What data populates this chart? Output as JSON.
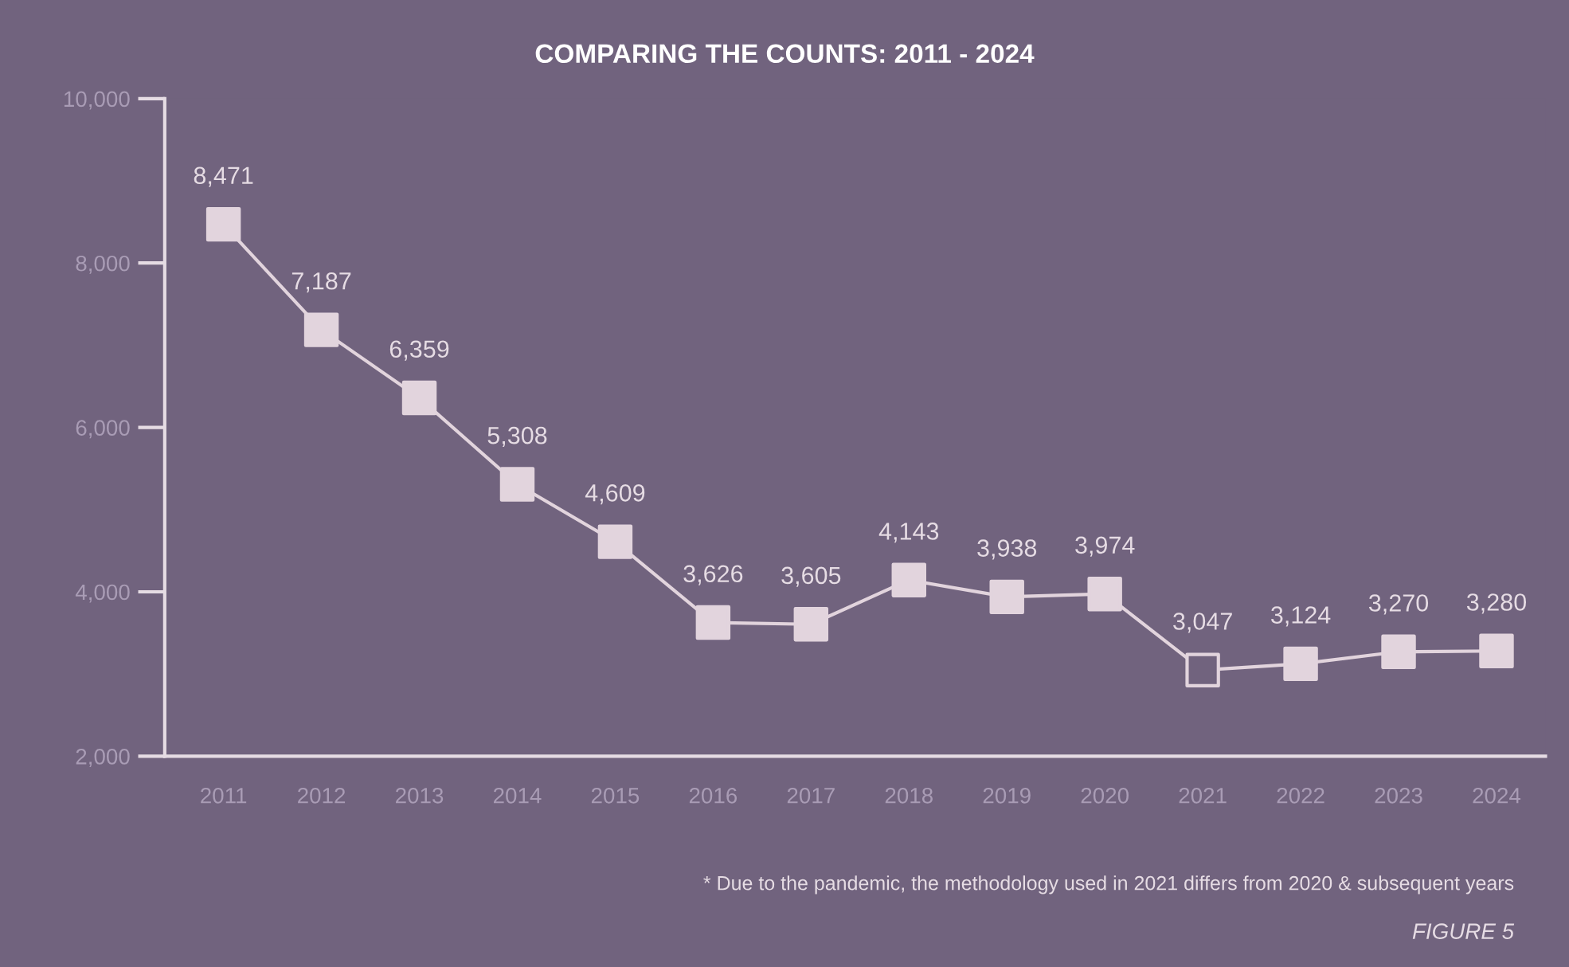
{
  "chart_data": {
    "type": "line",
    "title": "COMPARING THE COUNTS: 2011 - 2024",
    "categories": [
      "2011",
      "2012",
      "2013",
      "2014",
      "2015",
      "2016",
      "2017",
      "2018",
      "2019",
      "2020",
      "2021",
      "2022",
      "2023",
      "2024"
    ],
    "series": [
      {
        "color": "#e2d4dd",
        "values": [
          8471,
          7187,
          6359,
          5308,
          4609,
          3626,
          3605,
          4143,
          3938,
          3974,
          3047,
          3124,
          3270,
          3280
        ],
        "value_labels": [
          "8,471",
          "7,187",
          "6,359",
          "5,308",
          "4,609",
          "3,626",
          "3,605",
          "4,143",
          "3,938",
          "3,974",
          "3,047",
          "3,124",
          "3,270",
          "3,280"
        ],
        "colors": [
          "#e2d4dd",
          "#e2d4dd",
          "#e2d4dd",
          "#e2d4dd",
          "#e2d4dd",
          "#e2d4dd",
          "#e2d4dd",
          "#e2d4dd",
          "#e2d4dd",
          "#e2d4dd",
          "#71637e",
          "#e2d4dd",
          "#e2d4dd",
          "#e2d4dd"
        ]
      }
    ],
    "ylim": [
      2000,
      10000
    ],
    "yticks": [
      {
        "value": 2000,
        "label": "2,000"
      },
      {
        "value": 4000,
        "label": "4,000"
      },
      {
        "value": 6000,
        "label": "6,000"
      },
      {
        "value": 8000,
        "label": "8,000"
      },
      {
        "value": 10000,
        "label": "10,000"
      }
    ],
    "marker": "square",
    "line_style": "solid",
    "grid": false,
    "annotations": [
      "* Due to the pandemic, the methodology used in 2021 differs from 2020 & subsequent years",
      "FIGURE 5"
    ]
  }
}
